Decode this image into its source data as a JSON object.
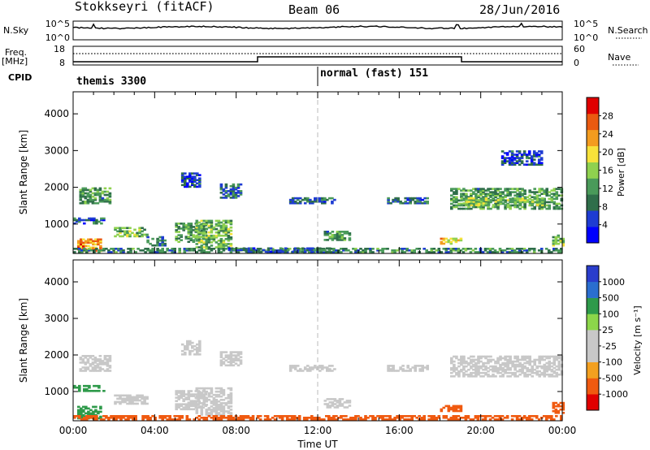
{
  "header": {
    "station": "Stokkseyri (fitACF)",
    "beam": "Beam 06",
    "date": "28/Jun/2016"
  },
  "noise_panel": {
    "label": "N.Sky",
    "left_ticks": [
      "10^5",
      "10^0"
    ],
    "right_ticks": [
      "10^5",
      "10^0"
    ],
    "right_label": "N.Search"
  },
  "freq_panel": {
    "label_top": "Freq.",
    "label_unit": "[MHz]",
    "left_ticks": [
      "18",
      "8"
    ],
    "right_ticks": [
      "60",
      "0"
    ],
    "right_label": "Nave"
  },
  "cpid": {
    "label": "CPID",
    "modes": [
      "themis 3300",
      "normal (fast) 151"
    ]
  },
  "colors": {
    "power": [
      "#0000ff",
      "#1e3cd2",
      "#2f6e4a",
      "#4a9a5a",
      "#8fd14f",
      "#f7e23a",
      "#f39c1f",
      "#ea5a10",
      "#e00000"
    ],
    "velocity": [
      "#e00000",
      "#f05a10",
      "#f3a020",
      "#c8c8c8",
      "#c8c8c8",
      "#8cd64a",
      "#2e9a4a",
      "#2a6ecf",
      "#2a3dcc"
    ],
    "ground_scatter": "#c8c8c8"
  },
  "chart_data": [
    {
      "type": "heatmap",
      "name": "power",
      "ylabel": "Slant Range [km]",
      "ylim": [
        200,
        4600
      ],
      "yticks": [
        "1000",
        "2000",
        "3000",
        "4000"
      ],
      "xlim": [
        "00:00",
        "24:00"
      ],
      "colorbar": {
        "label": "Power [dB]",
        "ticks": [
          "4",
          "8",
          "12",
          "16",
          "20",
          "24",
          "28"
        ],
        "range": [
          0,
          32
        ]
      },
      "echo_regions": [
        {
          "t": [
            0.3,
            1.8
          ],
          "r": [
            1550,
            2000
          ],
          "v": 12
        },
        {
          "t": [
            0.0,
            1.5
          ],
          "r": [
            1000,
            1150
          ],
          "v": 8
        },
        {
          "t": [
            0.2,
            1.3
          ],
          "r": [
            250,
            600
          ],
          "v": 24
        },
        {
          "t": [
            2.0,
            3.6
          ],
          "r": [
            650,
            900
          ],
          "v": 14
        },
        {
          "t": [
            3.6,
            4.5
          ],
          "r": [
            400,
            650
          ],
          "v": 10
        },
        {
          "t": [
            5.0,
            6.5
          ],
          "r": [
            500,
            1000
          ],
          "v": 12
        },
        {
          "t": [
            6.0,
            7.8
          ],
          "r": [
            350,
            1100
          ],
          "v": 14
        },
        {
          "t": [
            7.2,
            8.2
          ],
          "r": [
            1700,
            2100
          ],
          "v": 8
        },
        {
          "t": [
            5.3,
            6.2
          ],
          "r": [
            2000,
            2400
          ],
          "v": 6
        },
        {
          "t": [
            0.0,
            24.0
          ],
          "r": [
            220,
            330
          ],
          "v": 10
        },
        {
          "t": [
            7.6,
            12.6
          ],
          "r": [
            230,
            340
          ],
          "v": 8
        },
        {
          "t": [
            12.3,
            13.6
          ],
          "r": [
            550,
            800
          ],
          "v": 12
        },
        {
          "t": [
            10.6,
            12.8
          ],
          "r": [
            1550,
            1700
          ],
          "v": 8
        },
        {
          "t": [
            15.4,
            17.4
          ],
          "r": [
            1550,
            1700
          ],
          "v": 8
        },
        {
          "t": [
            18.0,
            19.0
          ],
          "r": [
            450,
            600
          ],
          "v": 20
        },
        {
          "t": [
            18.5,
            24.0
          ],
          "r": [
            1400,
            1950
          ],
          "v": 12
        },
        {
          "t": [
            19.0,
            23.0
          ],
          "r": [
            1500,
            1700
          ],
          "v": 16
        },
        {
          "t": [
            23.5,
            24.0
          ],
          "r": [
            400,
            700
          ],
          "v": 14
        },
        {
          "t": [
            21.0,
            23.0
          ],
          "r": [
            2600,
            3000
          ],
          "v": 6
        }
      ]
    },
    {
      "type": "heatmap",
      "name": "velocity",
      "ylabel": "Slant Range [km]",
      "ylim": [
        200,
        4600
      ],
      "yticks": [
        "1000",
        "2000",
        "3000",
        "4000"
      ],
      "xlabel": "Time UT",
      "xticks": [
        "00:00",
        "04:00",
        "08:00",
        "12:00",
        "16:00",
        "20:00",
        "00:00"
      ],
      "colorbar": {
        "label": "Velocity [m s⁻¹]",
        "ticks": [
          "1000",
          "500",
          "100",
          "25",
          "-25",
          "-100",
          "-500",
          "-1000"
        ]
      },
      "echo_regions": [
        {
          "t": [
            0.3,
            1.8
          ],
          "r": [
            1550,
            2000
          ],
          "v": 0
        },
        {
          "t": [
            0.0,
            1.5
          ],
          "r": [
            1000,
            1150
          ],
          "v": 150
        },
        {
          "t": [
            0.2,
            1.3
          ],
          "r": [
            250,
            600
          ],
          "v": 300
        },
        {
          "t": [
            2.0,
            3.6
          ],
          "r": [
            650,
            900
          ],
          "v": 0
        },
        {
          "t": [
            5.0,
            6.5
          ],
          "r": [
            500,
            1000
          ],
          "v": 0
        },
        {
          "t": [
            6.0,
            7.8
          ],
          "r": [
            350,
            1100
          ],
          "v": 0
        },
        {
          "t": [
            7.2,
            8.2
          ],
          "r": [
            1700,
            2100
          ],
          "v": 0
        },
        {
          "t": [
            5.3,
            6.2
          ],
          "r": [
            2000,
            2400
          ],
          "v": 0
        },
        {
          "t": [
            0.0,
            24.0
          ],
          "r": [
            220,
            330
          ],
          "v": -150
        },
        {
          "t": [
            10.6,
            12.8
          ],
          "r": [
            1550,
            1700
          ],
          "v": 0
        },
        {
          "t": [
            12.3,
            13.6
          ],
          "r": [
            550,
            800
          ],
          "v": 0
        },
        {
          "t": [
            15.4,
            17.4
          ],
          "r": [
            1550,
            1700
          ],
          "v": 0
        },
        {
          "t": [
            18.0,
            19.0
          ],
          "r": [
            450,
            600
          ],
          "v": -300
        },
        {
          "t": [
            18.5,
            24.0
          ],
          "r": [
            1400,
            1950
          ],
          "v": 0
        },
        {
          "t": [
            23.5,
            24.0
          ],
          "r": [
            400,
            700
          ],
          "v": -400
        }
      ]
    }
  ]
}
